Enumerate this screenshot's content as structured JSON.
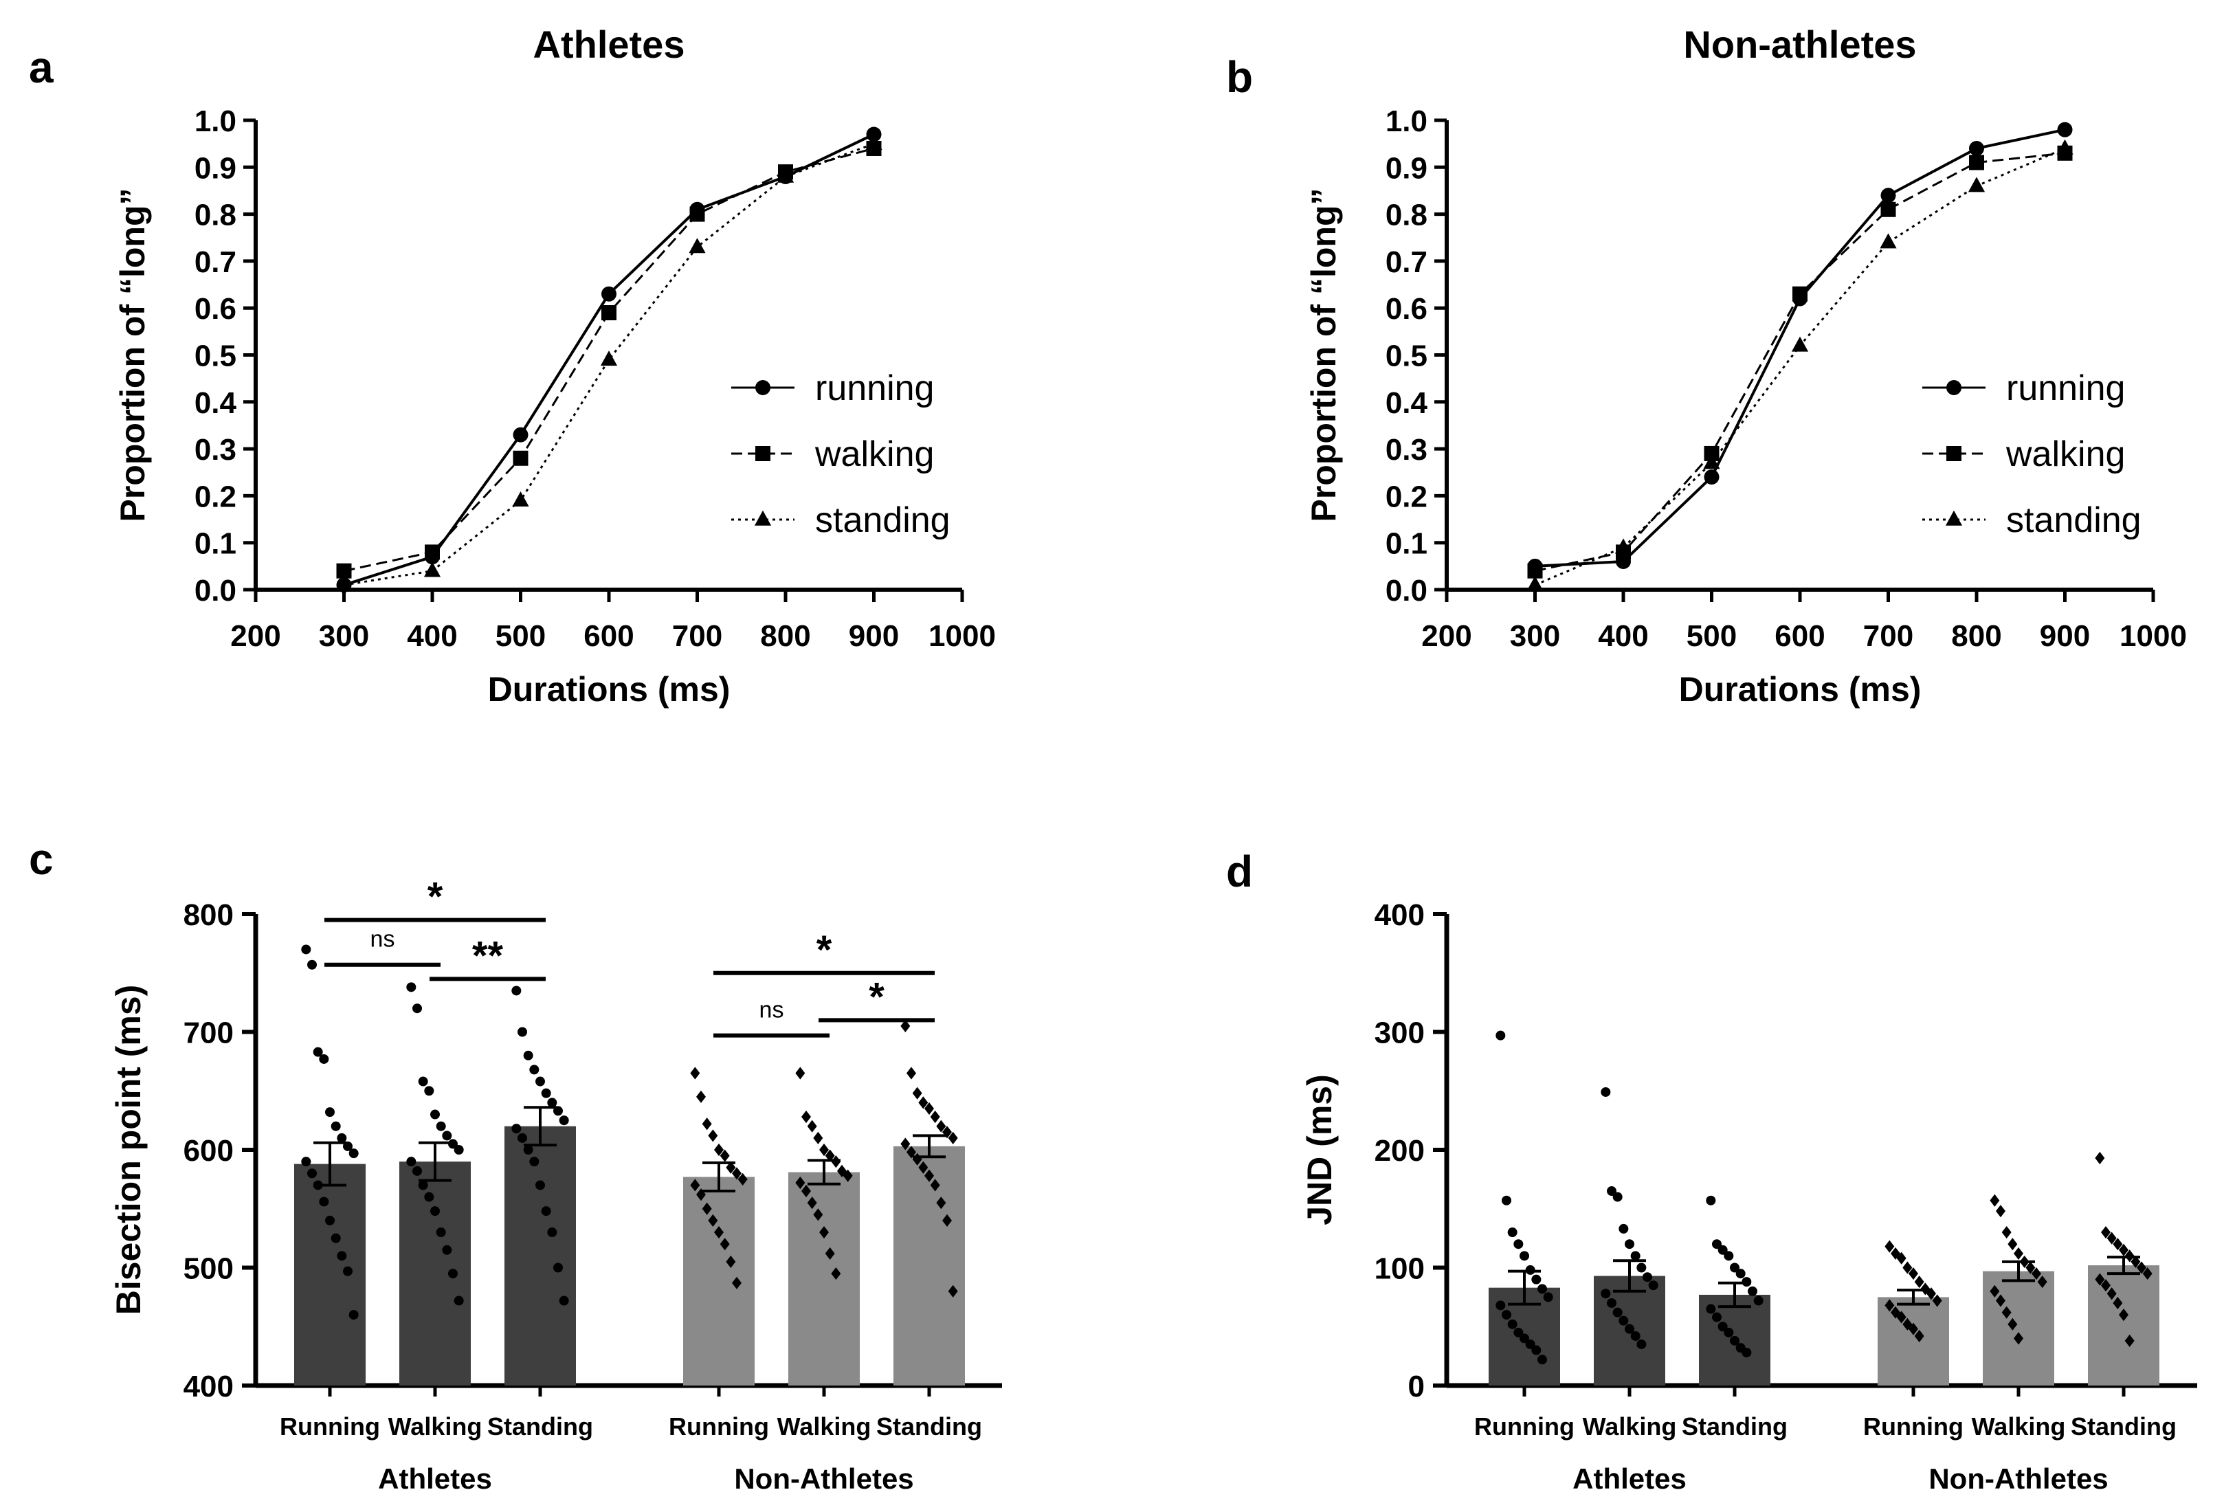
{
  "chart_data": [
    {
      "panel": "a",
      "type": "line",
      "title": "Athletes",
      "xlabel": "Durations (ms)",
      "ylabel": "Proportion of “long”",
      "xlim": [
        200,
        1000
      ],
      "ylim": [
        0,
        1
      ],
      "xticks": [
        "200",
        "300",
        "400",
        "500",
        "600",
        "700",
        "800",
        "900",
        "1000"
      ],
      "yticks": [
        "0.0",
        "0.1",
        "0.2",
        "0.3",
        "0.4",
        "0.5",
        "0.6",
        "0.7",
        "0.8",
        "0.9",
        "1.0"
      ],
      "x": [
        300,
        400,
        500,
        600,
        700,
        800,
        900
      ],
      "legend_position": "right",
      "series": [
        {
          "name": "running",
          "marker": "circle",
          "line": "solid",
          "values": [
            0.01,
            0.07,
            0.33,
            0.63,
            0.81,
            0.88,
            0.97
          ]
        },
        {
          "name": "walking",
          "marker": "square",
          "line": "dashed",
          "values": [
            0.04,
            0.08,
            0.28,
            0.59,
            0.8,
            0.89,
            0.94
          ]
        },
        {
          "name": "standing",
          "marker": "triangle",
          "line": "dotted",
          "values": [
            0.01,
            0.04,
            0.19,
            0.49,
            0.73,
            0.88,
            0.95
          ]
        }
      ]
    },
    {
      "panel": "b",
      "type": "line",
      "title": "Non-athletes",
      "xlabel": "Durations (ms)",
      "ylabel": "Proportion of “long”",
      "xlim": [
        200,
        1000
      ],
      "ylim": [
        0,
        1
      ],
      "xticks": [
        "200",
        "300",
        "400",
        "500",
        "600",
        "700",
        "800",
        "900",
        "1000"
      ],
      "yticks": [
        "0.0",
        "0.1",
        "0.2",
        "0.3",
        "0.4",
        "0.5",
        "0.6",
        "0.7",
        "0.8",
        "0.9",
        "1.0"
      ],
      "x": [
        300,
        400,
        500,
        600,
        700,
        800,
        900
      ],
      "legend_position": "right",
      "series": [
        {
          "name": "running",
          "marker": "circle",
          "line": "solid",
          "values": [
            0.05,
            0.06,
            0.24,
            0.62,
            0.84,
            0.94,
            0.98
          ]
        },
        {
          "name": "walking",
          "marker": "square",
          "line": "dashed",
          "values": [
            0.04,
            0.08,
            0.29,
            0.63,
            0.81,
            0.91,
            0.93
          ]
        },
        {
          "name": "standing",
          "marker": "triangle",
          "line": "dotted",
          "values": [
            0.01,
            0.09,
            0.27,
            0.52,
            0.74,
            0.86,
            0.94
          ]
        }
      ]
    },
    {
      "panel": "c",
      "type": "bar",
      "ylabel": "Bisection point (ms)",
      "ylim": [
        400,
        800
      ],
      "yticks": [
        "400",
        "500",
        "600",
        "700",
        "800"
      ],
      "groups": [
        {
          "label": "Athletes",
          "color": "#3f3f3f",
          "marker": "circle",
          "bars": [
            {
              "label": "Running",
              "mean": 588,
              "sem": 18,
              "points": [
                770,
                757,
                683,
                677,
                632,
                620,
                610,
                603,
                597,
                590,
                580,
                570,
                556,
                540,
                525,
                510,
                497,
                460
              ]
            },
            {
              "label": "Walking",
              "mean": 590,
              "sem": 16,
              "points": [
                738,
                720,
                658,
                650,
                630,
                620,
                612,
                605,
                600,
                590,
                582,
                570,
                560,
                548,
                530,
                515,
                495,
                472
              ]
            },
            {
              "label": "Standing",
              "mean": 620,
              "sem": 16,
              "points": [
                735,
                700,
                680,
                668,
                658,
                648,
                640,
                633,
                625,
                618,
                610,
                600,
                590,
                570,
                548,
                530,
                500,
                472
              ]
            }
          ]
        },
        {
          "label": "Non-Athletes",
          "color": "#8a8a8a",
          "marker": "diamond",
          "bars": [
            {
              "label": "Running",
              "mean": 577,
              "sem": 12,
              "points": [
                665,
                645,
                622,
                612,
                600,
                595,
                585,
                580,
                575,
                570,
                562,
                550,
                540,
                530,
                520,
                505,
                487
              ]
            },
            {
              "label": "Walking",
              "mean": 581,
              "sem": 10,
              "points": [
                665,
                628,
                620,
                610,
                600,
                595,
                590,
                582,
                578,
                572,
                565,
                555,
                545,
                530,
                512,
                495
              ]
            },
            {
              "label": "Standing",
              "mean": 603,
              "sem": 9,
              "points": [
                705,
                665,
                648,
                640,
                635,
                628,
                620,
                615,
                610,
                605,
                598,
                592,
                585,
                578,
                570,
                555,
                540,
                480
              ]
            }
          ]
        }
      ],
      "significance": [
        {
          "group": 0,
          "from": 0,
          "to": 2,
          "label": "*",
          "y": 795
        },
        {
          "group": 0,
          "from": 0,
          "to": 1,
          "label": "ns",
          "y": 757
        },
        {
          "group": 0,
          "from": 1,
          "to": 2,
          "label": "**",
          "y": 745
        },
        {
          "group": 1,
          "from": 0,
          "to": 2,
          "label": "*",
          "y": 750
        },
        {
          "group": 1,
          "from": 0,
          "to": 1,
          "label": "ns",
          "y": 697
        },
        {
          "group": 1,
          "from": 1,
          "to": 2,
          "label": "*",
          "y": 710
        }
      ]
    },
    {
      "panel": "d",
      "type": "bar",
      "ylabel": "JND (ms)",
      "ylim": [
        0,
        400
      ],
      "yticks": [
        "0",
        "100",
        "200",
        "300",
        "400"
      ],
      "groups": [
        {
          "label": "Athletes",
          "color": "#3f3f3f",
          "marker": "circle",
          "bars": [
            {
              "label": "Running",
              "mean": 83,
              "sem": 14,
              "points": [
                297,
                157,
                130,
                120,
                110,
                98,
                90,
                82,
                75,
                68,
                60,
                52,
                45,
                40,
                35,
                30,
                22
              ]
            },
            {
              "label": "Walking",
              "mean": 93,
              "sem": 13,
              "points": [
                249,
                165,
                160,
                133,
                120,
                110,
                100,
                92,
                85,
                78,
                70,
                62,
                55,
                48,
                42,
                35
              ]
            },
            {
              "label": "Standing",
              "mean": 77,
              "sem": 10,
              "points": [
                157,
                120,
                115,
                110,
                100,
                95,
                88,
                80,
                72,
                65,
                58,
                50,
                45,
                38,
                32,
                28
              ]
            }
          ]
        },
        {
          "label": "Non-Athletes",
          "color": "#8a8a8a",
          "marker": "diamond",
          "bars": [
            {
              "label": "Running",
              "mean": 75,
              "sem": 6,
              "points": [
                118,
                112,
                108,
                100,
                95,
                88,
                82,
                78,
                72,
                68,
                62,
                58,
                52,
                48,
                42
              ]
            },
            {
              "label": "Walking",
              "mean": 97,
              "sem": 8,
              "points": [
                157,
                148,
                130,
                120,
                112,
                105,
                100,
                95,
                88,
                80,
                72,
                62,
                52,
                40
              ]
            },
            {
              "label": "Standing",
              "mean": 102,
              "sem": 7,
              "points": [
                193,
                130,
                125,
                120,
                115,
                110,
                105,
                100,
                95,
                90,
                85,
                78,
                70,
                60,
                38
              ]
            }
          ]
        }
      ]
    }
  ],
  "panel_labels": {
    "a": "a",
    "b": "b",
    "c": "c",
    "d": "d"
  }
}
